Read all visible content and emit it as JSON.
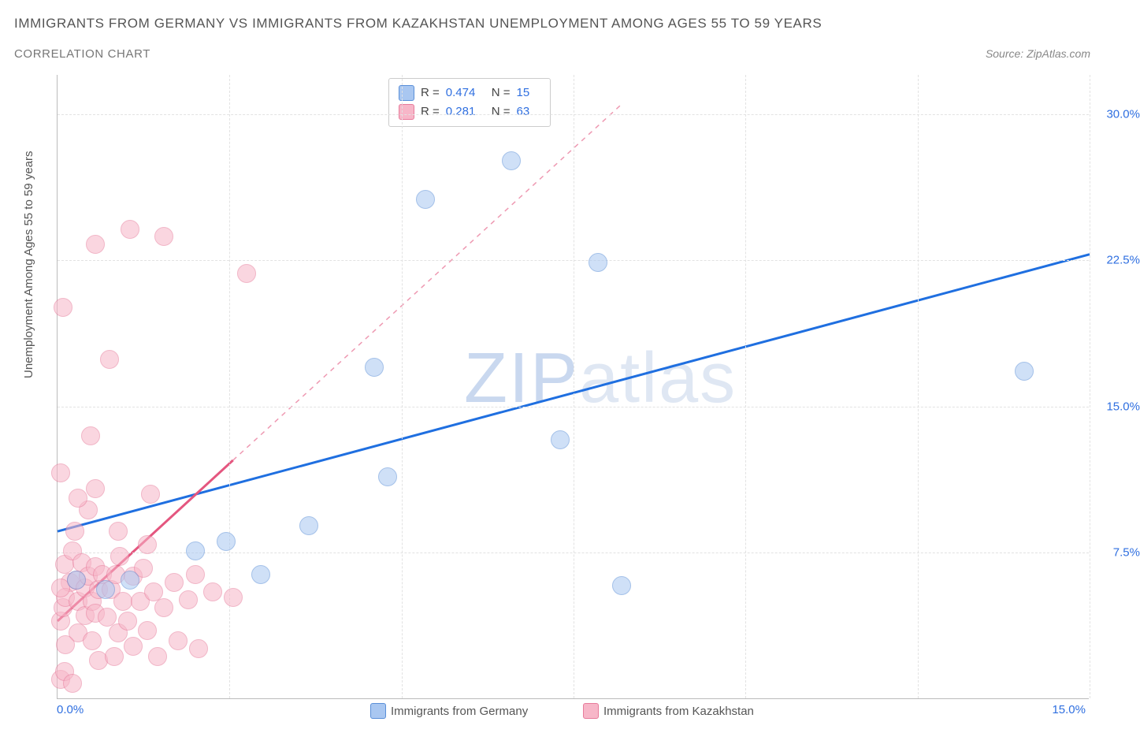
{
  "title": "IMMIGRANTS FROM GERMANY VS IMMIGRANTS FROM KAZAKHSTAN UNEMPLOYMENT AMONG AGES 55 TO 59 YEARS",
  "subtitle": "CORRELATION CHART",
  "source_label": "Source:",
  "source_value": "ZipAtlas.com",
  "ylabel": "Unemployment Among Ages 55 to 59 years",
  "watermark_z": "ZIP",
  "watermark_rest": "atlas",
  "watermark_color_z": "#c9d8ef",
  "watermark_color_rest": "#dfe7f3",
  "chart": {
    "type": "scatter",
    "xlim": [
      0,
      15
    ],
    "ylim": [
      0,
      32
    ],
    "x_tick_origin": "0.0%",
    "x_tick_max": "15.0%",
    "y_ticks": [
      {
        "v": 7.5,
        "label": "7.5%"
      },
      {
        "v": 15.0,
        "label": "15.0%"
      },
      {
        "v": 22.5,
        "label": "22.5%"
      },
      {
        "v": 30.0,
        "label": "30.0%"
      }
    ],
    "x_grid_at": [
      2.5,
      5.0,
      7.5,
      10.0,
      12.5,
      15.0
    ],
    "grid_color": "#e2e2e2",
    "axis_color": "#bbbbbb",
    "background_color": "#ffffff"
  },
  "series": [
    {
      "name": "Immigrants from Germany",
      "fill": "#a9c7f1",
      "fill_opacity": 0.55,
      "stroke": "#5a8fd8",
      "marker_radius": 12,
      "trend": {
        "x1": 0,
        "y1": 8.6,
        "x2": 15,
        "y2": 22.8,
        "solid_to_x": 15,
        "color": "#1f6fe0",
        "width": 3
      },
      "R": "0.474",
      "N": "15",
      "points": [
        {
          "x": 0.28,
          "y": 6.1
        },
        {
          "x": 0.7,
          "y": 5.6
        },
        {
          "x": 1.05,
          "y": 6.1
        },
        {
          "x": 2.0,
          "y": 7.6
        },
        {
          "x": 2.45,
          "y": 8.1
        },
        {
          "x": 2.95,
          "y": 6.4
        },
        {
          "x": 3.65,
          "y": 8.9
        },
        {
          "x": 4.8,
          "y": 11.4
        },
        {
          "x": 4.6,
          "y": 17.0
        },
        {
          "x": 5.35,
          "y": 25.6
        },
        {
          "x": 6.6,
          "y": 27.6
        },
        {
          "x": 7.3,
          "y": 13.3
        },
        {
          "x": 7.85,
          "y": 22.4
        },
        {
          "x": 8.2,
          "y": 5.8
        },
        {
          "x": 14.05,
          "y": 16.8
        }
      ]
    },
    {
      "name": "Immigrants from Kazakhstan",
      "fill": "#f7b6c8",
      "fill_opacity": 0.55,
      "stroke": "#e77b9b",
      "marker_radius": 12,
      "trend": {
        "x1": 0,
        "y1": 4.0,
        "x2": 8.2,
        "y2": 30.5,
        "solid_to_x": 2.55,
        "color": "#e4567f",
        "width": 3
      },
      "R": "0.281",
      "N": "63",
      "points": [
        {
          "x": 0.05,
          "y": 4.0
        },
        {
          "x": 0.08,
          "y": 4.7
        },
        {
          "x": 0.18,
          "y": 6.0
        },
        {
          "x": 0.1,
          "y": 6.9
        },
        {
          "x": 0.12,
          "y": 5.2
        },
        {
          "x": 0.05,
          "y": 5.7
        },
        {
          "x": 0.22,
          "y": 7.6
        },
        {
          "x": 0.3,
          "y": 3.4
        },
        {
          "x": 0.3,
          "y": 5.0
        },
        {
          "x": 0.28,
          "y": 6.1
        },
        {
          "x": 0.35,
          "y": 7.0
        },
        {
          "x": 0.4,
          "y": 4.3
        },
        {
          "x": 0.4,
          "y": 5.7
        },
        {
          "x": 0.45,
          "y": 6.3
        },
        {
          "x": 0.5,
          "y": 3.0
        },
        {
          "x": 0.5,
          "y": 5.0
        },
        {
          "x": 0.55,
          "y": 6.8
        },
        {
          "x": 0.55,
          "y": 4.4
        },
        {
          "x": 0.6,
          "y": 5.6
        },
        {
          "x": 0.6,
          "y": 2.0
        },
        {
          "x": 0.65,
          "y": 6.4
        },
        {
          "x": 0.72,
          "y": 4.2
        },
        {
          "x": 0.78,
          "y": 5.6
        },
        {
          "x": 0.85,
          "y": 6.4
        },
        {
          "x": 0.88,
          "y": 3.4
        },
        {
          "x": 0.82,
          "y": 2.2
        },
        {
          "x": 0.9,
          "y": 7.3
        },
        {
          "x": 0.95,
          "y": 5.0
        },
        {
          "x": 1.02,
          "y": 4.0
        },
        {
          "x": 1.1,
          "y": 6.3
        },
        {
          "x": 1.1,
          "y": 2.7
        },
        {
          "x": 1.2,
          "y": 5.0
        },
        {
          "x": 1.25,
          "y": 6.7
        },
        {
          "x": 1.3,
          "y": 3.5
        },
        {
          "x": 1.4,
          "y": 5.5
        },
        {
          "x": 1.45,
          "y": 2.2
        },
        {
          "x": 1.55,
          "y": 4.7
        },
        {
          "x": 1.7,
          "y": 6.0
        },
        {
          "x": 1.75,
          "y": 3.0
        },
        {
          "x": 1.9,
          "y": 5.1
        },
        {
          "x": 2.0,
          "y": 6.4
        },
        {
          "x": 2.05,
          "y": 2.6
        },
        {
          "x": 2.25,
          "y": 5.5
        },
        {
          "x": 2.55,
          "y": 5.2
        },
        {
          "x": 0.05,
          "y": 1.0
        },
        {
          "x": 0.1,
          "y": 1.4
        },
        {
          "x": 0.22,
          "y": 0.8
        },
        {
          "x": 0.12,
          "y": 2.8
        },
        {
          "x": 0.25,
          "y": 8.6
        },
        {
          "x": 0.45,
          "y": 9.7
        },
        {
          "x": 0.3,
          "y": 10.3
        },
        {
          "x": 0.55,
          "y": 10.8
        },
        {
          "x": 0.05,
          "y": 11.6
        },
        {
          "x": 0.88,
          "y": 8.6
        },
        {
          "x": 0.48,
          "y": 13.5
        },
        {
          "x": 0.08,
          "y": 20.1
        },
        {
          "x": 0.75,
          "y": 17.4
        },
        {
          "x": 0.55,
          "y": 23.3
        },
        {
          "x": 1.05,
          "y": 24.1
        },
        {
          "x": 1.55,
          "y": 23.7
        },
        {
          "x": 1.35,
          "y": 10.5
        },
        {
          "x": 2.75,
          "y": 21.8
        },
        {
          "x": 1.3,
          "y": 7.9
        }
      ]
    }
  ],
  "legend_box": {
    "r_label": "R =",
    "n_label": "N ="
  },
  "bottom_legend": [
    {
      "swatch_fill": "#a9c7f1",
      "swatch_stroke": "#5a8fd8",
      "label": "Immigrants from Germany"
    },
    {
      "swatch_fill": "#f7b6c8",
      "swatch_stroke": "#e77b9b",
      "label": "Immigrants from Kazakhstan"
    }
  ]
}
